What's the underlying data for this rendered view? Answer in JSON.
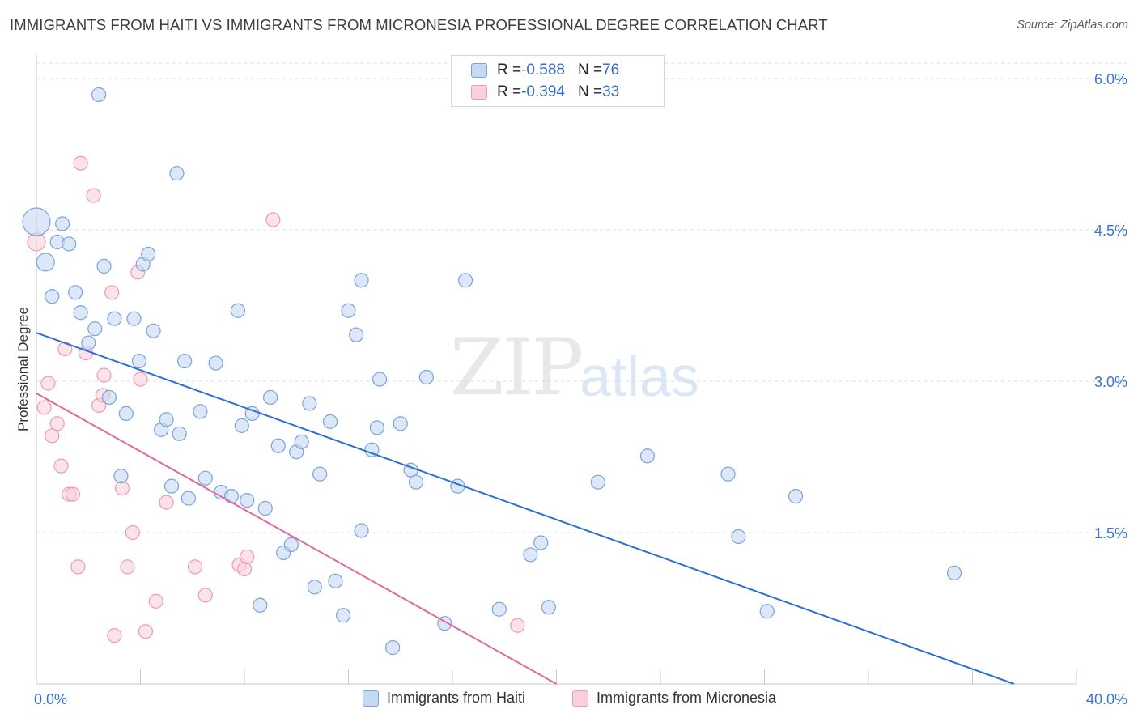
{
  "header": {
    "title": "IMMIGRANTS FROM HAITI VS IMMIGRANTS FROM MICRONESIA PROFESSIONAL DEGREE CORRELATION CHART",
    "source": "Source: ZipAtlas.com"
  },
  "watermark": {
    "zip": "ZIP",
    "atlas": "atlas"
  },
  "legend": {
    "rows": [
      {
        "r_label": "R = ",
        "r_value": "-0.588",
        "n_label": "N = ",
        "n_value": "76"
      },
      {
        "r_label": "R = ",
        "r_value": "-0.394",
        "n_label": "N = ",
        "n_value": "33"
      }
    ]
  },
  "bottom_legend": {
    "haiti": "Immigrants from Haiti",
    "micronesia": "Immigrants from Micronesia"
  },
  "colors": {
    "haiti_fill": "#c5d9f2",
    "haiti_stroke": "#7ba3dc",
    "haiti_line": "#2e6fd1",
    "micronesia_fill": "#f9d0dc",
    "micronesia_stroke": "#ee9ab4",
    "micronesia_line": "#e0699a",
    "tick_label": "#3d74c9",
    "grid": "#dcdcdc"
  },
  "chart_data": {
    "type": "scatter",
    "title": "IMMIGRANTS FROM HAITI VS IMMIGRANTS FROM MICRONESIA PROFESSIONAL DEGREE CORRELATION CHART",
    "xlabel": "",
    "ylabel": "Professional Degree",
    "xlim": [
      0,
      40
    ],
    "ylim": [
      0,
      6.2
    ],
    "x_tick_labels": [
      "0.0%",
      "40.0%"
    ],
    "y_ticks": [
      1.5,
      3.0,
      4.5,
      6.0
    ],
    "y_tick_labels": [
      "1.5%",
      "3.0%",
      "4.5%",
      "6.0%"
    ],
    "grid": true,
    "series": [
      {
        "name": "Immigrants from Haiti",
        "R": -0.588,
        "N": 76,
        "trend": {
          "x": [
            0,
            37.6
          ],
          "y": [
            3.48,
            0.0
          ]
        },
        "points": [
          [
            0.0,
            4.58,
            3
          ],
          [
            0.35,
            4.18,
            2
          ],
          [
            0.8,
            4.38,
            1
          ],
          [
            1.0,
            4.56,
            1
          ],
          [
            1.25,
            4.36,
            1
          ],
          [
            0.6,
            3.84,
            1
          ],
          [
            1.5,
            3.88,
            1
          ],
          [
            1.7,
            3.68,
            1
          ],
          [
            2.0,
            3.38,
            1
          ],
          [
            2.25,
            3.52,
            1
          ],
          [
            2.6,
            4.14,
            1
          ],
          [
            2.8,
            2.84,
            1
          ],
          [
            3.0,
            3.62,
            1
          ],
          [
            3.25,
            2.06,
            1
          ],
          [
            3.45,
            2.68,
            1
          ],
          [
            3.75,
            3.62,
            1
          ],
          [
            3.95,
            3.2,
            1
          ],
          [
            4.1,
            4.16,
            1
          ],
          [
            4.3,
            4.26,
            1
          ],
          [
            4.5,
            3.5,
            1
          ],
          [
            4.8,
            2.52,
            1
          ],
          [
            5.0,
            2.62,
            1
          ],
          [
            5.2,
            1.96,
            1
          ],
          [
            5.5,
            2.48,
            1
          ],
          [
            5.7,
            3.2,
            1
          ],
          [
            5.85,
            1.84,
            1
          ],
          [
            6.3,
            2.7,
            1
          ],
          [
            6.5,
            2.04,
            1
          ],
          [
            6.9,
            3.18,
            1
          ],
          [
            7.1,
            1.9,
            1
          ],
          [
            7.5,
            1.86,
            1
          ],
          [
            7.75,
            3.7,
            1
          ],
          [
            7.9,
            2.56,
            1
          ],
          [
            8.1,
            1.82,
            1
          ],
          [
            8.3,
            2.68,
            1
          ],
          [
            8.6,
            0.78,
            1
          ],
          [
            8.8,
            1.74,
            1
          ],
          [
            9.0,
            2.84,
            1
          ],
          [
            9.3,
            2.36,
            1
          ],
          [
            9.5,
            1.3,
            1
          ],
          [
            9.8,
            1.38,
            1
          ],
          [
            10.0,
            2.3,
            1
          ],
          [
            10.2,
            2.4,
            1
          ],
          [
            10.5,
            2.78,
            1
          ],
          [
            10.7,
            0.96,
            1
          ],
          [
            10.9,
            2.08,
            1
          ],
          [
            11.3,
            2.6,
            1
          ],
          [
            11.5,
            1.02,
            1
          ],
          [
            11.8,
            0.68,
            1
          ],
          [
            12.0,
            3.7,
            1
          ],
          [
            12.3,
            3.46,
            1
          ],
          [
            12.5,
            1.52,
            1
          ],
          [
            12.5,
            4.0,
            1
          ],
          [
            12.9,
            2.32,
            1
          ],
          [
            13.1,
            2.54,
            1
          ],
          [
            13.2,
            3.02,
            1
          ],
          [
            13.7,
            0.36,
            1
          ],
          [
            14.0,
            2.58,
            1
          ],
          [
            14.4,
            2.12,
            1
          ],
          [
            14.6,
            2.0,
            1
          ],
          [
            15.0,
            3.04,
            1
          ],
          [
            15.7,
            0.6,
            1
          ],
          [
            16.2,
            1.96,
            1
          ],
          [
            16.5,
            4.0,
            1
          ],
          [
            17.8,
            0.74,
            1
          ],
          [
            19.0,
            1.28,
            1
          ],
          [
            19.4,
            1.4,
            1
          ],
          [
            19.7,
            0.76,
            1
          ],
          [
            21.6,
            2.0,
            1
          ],
          [
            23.5,
            2.26,
            1
          ],
          [
            26.6,
            2.08,
            1
          ],
          [
            27.0,
            1.46,
            1
          ],
          [
            28.1,
            0.72,
            1
          ],
          [
            29.2,
            1.86,
            1
          ],
          [
            35.3,
            1.1,
            1
          ],
          [
            2.4,
            5.84,
            1
          ],
          [
            5.4,
            5.06,
            1
          ]
        ]
      },
      {
        "name": "Immigrants from Micronesia",
        "R": -0.394,
        "N": 33,
        "trend": {
          "x": [
            0,
            20.0
          ],
          "y": [
            2.88,
            0.0
          ]
        },
        "points": [
          [
            0.0,
            4.38,
            2
          ],
          [
            0.3,
            2.74,
            1
          ],
          [
            0.45,
            2.98,
            1
          ],
          [
            0.6,
            2.46,
            1
          ],
          [
            0.8,
            2.58,
            1
          ],
          [
            0.95,
            2.16,
            1
          ],
          [
            1.1,
            3.32,
            1
          ],
          [
            1.25,
            1.88,
            1
          ],
          [
            1.4,
            1.88,
            1
          ],
          [
            1.6,
            1.16,
            1
          ],
          [
            1.7,
            5.16,
            1
          ],
          [
            1.9,
            3.28,
            1
          ],
          [
            2.2,
            4.84,
            1
          ],
          [
            2.4,
            2.76,
            1
          ],
          [
            2.55,
            2.86,
            1
          ],
          [
            2.6,
            3.06,
            1
          ],
          [
            2.9,
            3.88,
            1
          ],
          [
            3.0,
            0.48,
            1
          ],
          [
            3.3,
            1.94,
            1
          ],
          [
            3.5,
            1.16,
            1
          ],
          [
            3.7,
            1.5,
            1
          ],
          [
            3.9,
            4.08,
            1
          ],
          [
            4.0,
            3.02,
            1
          ],
          [
            4.2,
            0.52,
            1
          ],
          [
            4.6,
            0.82,
            1
          ],
          [
            5.0,
            1.8,
            1
          ],
          [
            6.1,
            1.16,
            1
          ],
          [
            6.5,
            0.88,
            1
          ],
          [
            7.8,
            1.18,
            1
          ],
          [
            8.0,
            1.14,
            1
          ],
          [
            8.1,
            1.26,
            1
          ],
          [
            9.1,
            4.6,
            1
          ],
          [
            18.5,
            0.58,
            1
          ]
        ]
      }
    ]
  }
}
